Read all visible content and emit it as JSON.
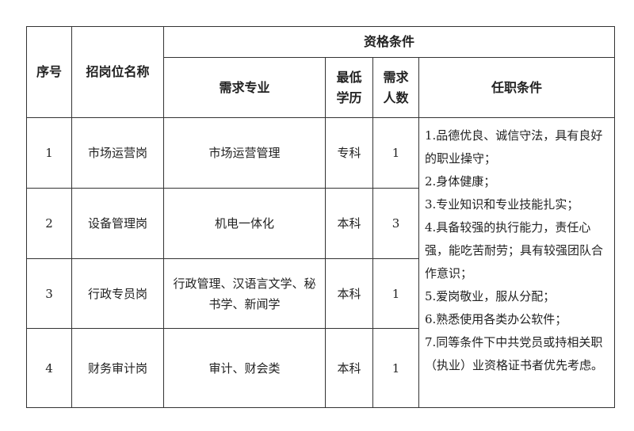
{
  "header": {
    "no": "序号",
    "position": "招岗位名称",
    "qualifications": "资格条件",
    "major": "需求专业",
    "education": "最低学历",
    "count": "需求人数",
    "requirements": "任职条件"
  },
  "rows": [
    {
      "no": "1",
      "position": "市场运营岗",
      "major": "市场运营管理",
      "education": "专科",
      "count": "1"
    },
    {
      "no": "2",
      "position": "设备管理岗",
      "major": "机电一体化",
      "education": "本科",
      "count": "3"
    },
    {
      "no": "3",
      "position": "行政专员岗",
      "major": "行政管理、汉语言文学、秘书学、新闻学",
      "education": "本科",
      "count": "1"
    },
    {
      "no": "4",
      "position": "财务审计岗",
      "major": "审计、财会类",
      "education": "本科",
      "count": "1"
    }
  ],
  "requirements": [
    "1.品德优良、诚信守法，具有良好的职业操守；",
    "2.身体健康；",
    "3.专业知识和专业技能扎实；",
    "4.具备较强的执行能力，责任心强，能吃苦耐劳；具有较强团队合作意识；",
    "5.爱岗敬业，服从分配；",
    "6.熟悉使用各类办公软件；",
    "7.同等条件下中共党员或持相关职（执业）业资格证书者优先考虑。"
  ]
}
